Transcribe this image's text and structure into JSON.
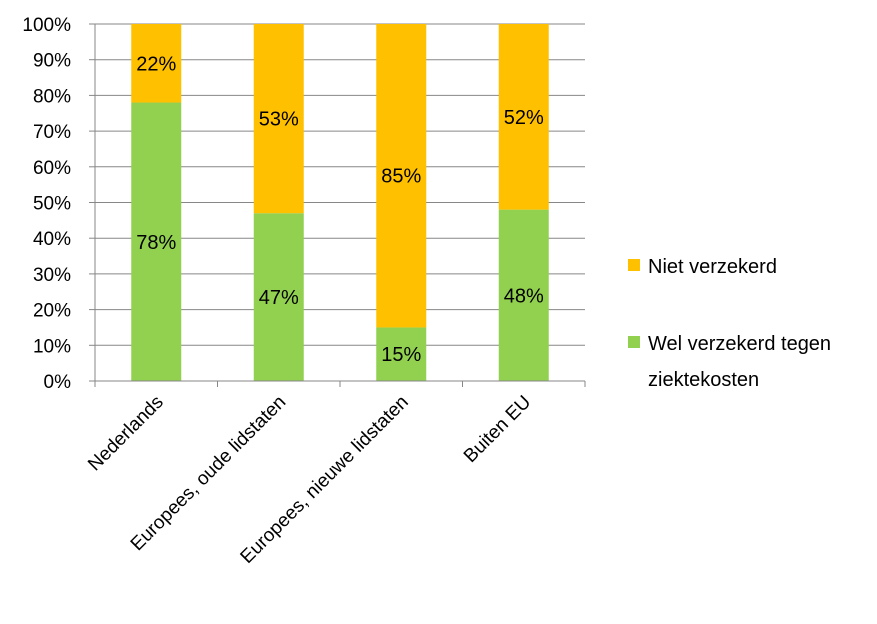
{
  "chart_data": {
    "type": "bar",
    "stacked": true,
    "categories": [
      "Nederlands",
      "Europees, oude lidstaten",
      "Europees, nieuwe lidstaten",
      "Buiten EU"
    ],
    "series": [
      {
        "name": "Wel verzekerd tegen ziektekosten",
        "values": [
          78,
          47,
          15,
          48
        ],
        "labels": [
          "78%",
          "47%",
          "15%",
          "48%"
        ],
        "color": "#92D050"
      },
      {
        "name": "Niet verzekerd",
        "values": [
          22,
          53,
          85,
          52
        ],
        "labels": [
          "22%",
          "53%",
          "85%",
          "52%"
        ],
        "color": "#FFC000"
      }
    ],
    "ylim": [
      0,
      100
    ],
    "yticks": [
      "0%",
      "10%",
      "20%",
      "30%",
      "40%",
      "50%",
      "60%",
      "70%",
      "80%",
      "90%",
      "100%"
    ],
    "grid": true,
    "legend": {
      "placement": "right",
      "items": [
        {
          "lines": [
            "Niet verzekerd"
          ],
          "color": "#FFC000"
        },
        {
          "lines": [
            "Wel verzekerd tegen",
            "ziektekosten"
          ],
          "color": "#92D050"
        }
      ]
    },
    "colors": {
      "gridline": "#878787",
      "axis": "#878787"
    }
  }
}
